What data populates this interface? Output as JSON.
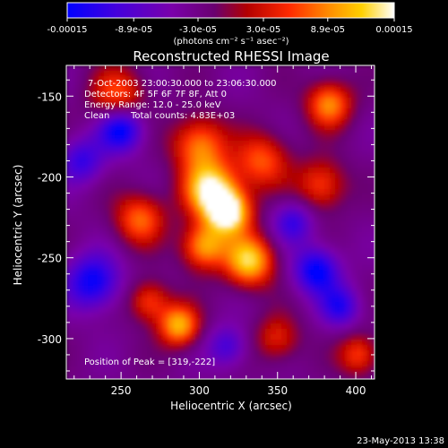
{
  "chart_data": {
    "type": "heatmap",
    "title": "Reconstructed RHESSI Image",
    "xlabel": "Heliocentric X (arcsec)",
    "ylabel": "Heliocentric Y (arcsec)",
    "xlim": [
      215,
      412
    ],
    "ylim": [
      -325,
      -131
    ],
    "x_ticks": [
      250,
      300,
      350,
      400
    ],
    "x_tick_labels": [
      "250",
      "300",
      "350",
      "400"
    ],
    "y_ticks": [
      -150,
      -200,
      -250,
      -300
    ],
    "y_tick_labels": [
      "-150",
      "-200",
      "-250",
      "-300"
    ],
    "colorbar": {
      "ticks": [
        -0.00015,
        -8.9e-05,
        -3e-05,
        3e-05,
        8.9e-05,
        0.00015
      ],
      "tick_labels": [
        "-0.00015",
        "-8.9e-05",
        "-3.0e-05",
        "3.0e-05",
        "8.9e-05",
        "0.00015"
      ],
      "units_label": "(photons cm⁻² s⁻¹ asec⁻²)",
      "colors": [
        "#0000ff",
        "#5500cc",
        "#7700aa",
        "#6a0088",
        "#a50000",
        "#ff2200",
        "#ff8800",
        "#ffcc00",
        "#ffffff"
      ]
    },
    "annotations": {
      "time_range": "7-Oct-2003 23:00:30.000 to 23:06:30.000",
      "detectors": "Detectors: 4F 5F 6F 7F 8F, Att 0",
      "energy": "Energy Range: 12.0 - 25.0 keV",
      "clean": "Clean",
      "counts": "Total counts: 4.83E+03",
      "peak": "Position of Peak = [319,-222]"
    },
    "peak_position": [
      319,
      -222
    ],
    "blobs": [
      {
        "x": 307,
        "y": -208,
        "amp": 1.0,
        "sigma": 12
      },
      {
        "x": 319,
        "y": -222,
        "amp": 1.05,
        "sigma": 10
      },
      {
        "x": 332,
        "y": -252,
        "amp": 0.95,
        "sigma": 11
      },
      {
        "x": 303,
        "y": -243,
        "amp": 0.8,
        "sigma": 10
      },
      {
        "x": 300,
        "y": -180,
        "amp": 0.7,
        "sigma": 12
      },
      {
        "x": 340,
        "y": -190,
        "amp": 0.6,
        "sigma": 12
      },
      {
        "x": 262,
        "y": -226,
        "amp": 0.65,
        "sigma": 11
      },
      {
        "x": 287,
        "y": -292,
        "amp": 0.85,
        "sigma": 9
      },
      {
        "x": 268,
        "y": -277,
        "amp": 0.55,
        "sigma": 9
      },
      {
        "x": 248,
        "y": -150,
        "amp": 0.6,
        "sigma": 12
      },
      {
        "x": 383,
        "y": -155,
        "amp": 0.75,
        "sigma": 10
      },
      {
        "x": 378,
        "y": -205,
        "amp": 0.55,
        "sigma": 11
      },
      {
        "x": 350,
        "y": -300,
        "amp": 0.45,
        "sigma": 10
      },
      {
        "x": 402,
        "y": -310,
        "amp": 0.55,
        "sigma": 9
      },
      {
        "x": 375,
        "y": -258,
        "amp": -0.75,
        "sigma": 10
      },
      {
        "x": 250,
        "y": -170,
        "amp": -0.8,
        "sigma": 10
      },
      {
        "x": 232,
        "y": -265,
        "amp": -0.7,
        "sigma": 12
      },
      {
        "x": 360,
        "y": -228,
        "amp": -0.5,
        "sigma": 9
      },
      {
        "x": 318,
        "y": -305,
        "amp": -0.45,
        "sigma": 9
      },
      {
        "x": 225,
        "y": -190,
        "amp": -0.5,
        "sigma": 10
      },
      {
        "x": 390,
        "y": -280,
        "amp": -0.55,
        "sigma": 9
      }
    ]
  },
  "footer": {
    "timestamp": "23-May-2013 13:38"
  }
}
